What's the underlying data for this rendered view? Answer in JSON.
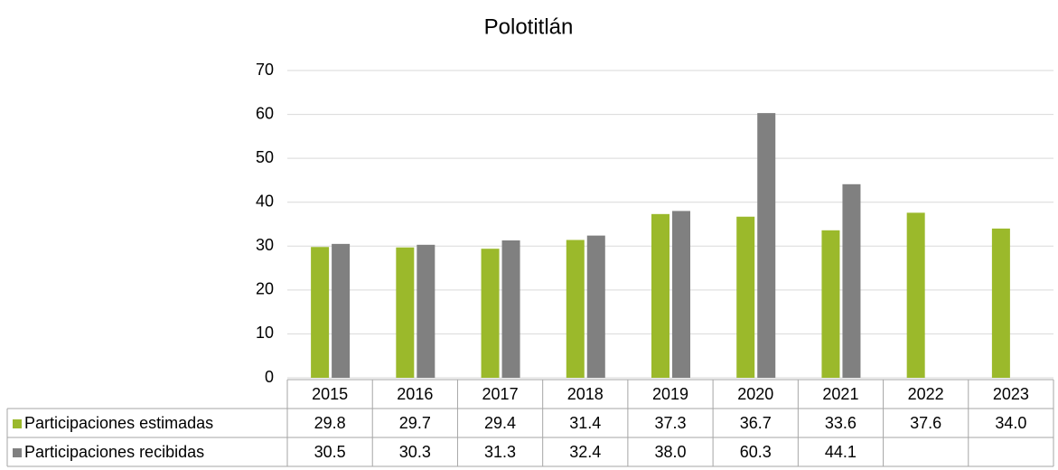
{
  "chart_data": {
    "type": "bar",
    "title": "Polotitlán",
    "categories": [
      "2015",
      "2016",
      "2017",
      "2018",
      "2019",
      "2020",
      "2021",
      "2022",
      "2023"
    ],
    "series": [
      {
        "name": "Participaciones estimadas",
        "color": "#9bb92b",
        "values": [
          29.8,
          29.7,
          29.4,
          31.4,
          37.3,
          36.7,
          33.6,
          37.6,
          34.0
        ],
        "value_labels": [
          "29.8",
          "29.7",
          "29.4",
          "31.4",
          "37.3",
          "36.7",
          "33.6",
          "37.6",
          "34.0"
        ]
      },
      {
        "name": "Participaciones recibidas",
        "color": "#808080",
        "values": [
          30.5,
          30.3,
          31.3,
          32.4,
          38.0,
          60.3,
          44.1,
          null,
          null
        ],
        "value_labels": [
          "30.5",
          "30.3",
          "31.3",
          "32.4",
          "38.0",
          "60.3",
          "44.1",
          null,
          null
        ]
      }
    ],
    "ylim": [
      0,
      70
    ],
    "yticks": [
      0,
      10,
      20,
      30,
      40,
      50,
      60,
      70
    ],
    "grid": true
  }
}
